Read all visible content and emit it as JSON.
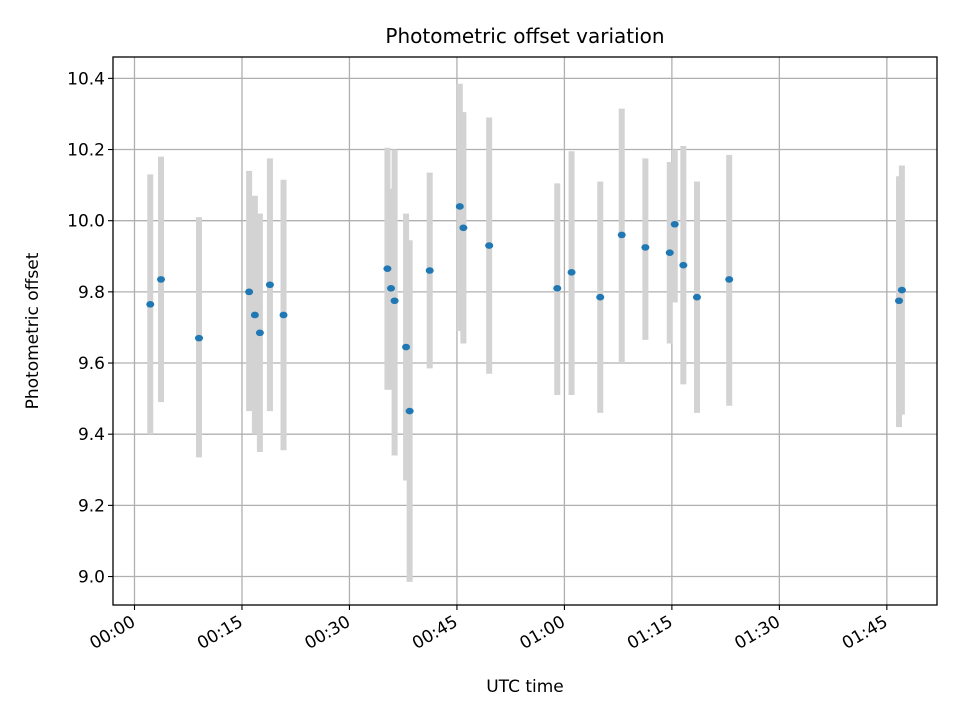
{
  "chart_data": {
    "type": "scatter",
    "title": "Photometric offset variation",
    "xlabel": "UTC time",
    "ylabel": "Photometric offset",
    "xlim": [
      -3.0,
      112.0
    ],
    "ylim": [
      8.92,
      10.46
    ],
    "x_unit": "minutes",
    "xticks": [
      {
        "value": 0,
        "label": "00:00"
      },
      {
        "value": 15,
        "label": "00:15"
      },
      {
        "value": 30,
        "label": "00:30"
      },
      {
        "value": 45,
        "label": "00:45"
      },
      {
        "value": 60,
        "label": "01:00"
      },
      {
        "value": 75,
        "label": "01:15"
      },
      {
        "value": 90,
        "label": "01:30"
      },
      {
        "value": 105,
        "label": "01:45"
      }
    ],
    "yticks": [
      {
        "value": 9.0,
        "label": "9.0"
      },
      {
        "value": 9.2,
        "label": "9.2"
      },
      {
        "value": 9.4,
        "label": "9.4"
      },
      {
        "value": 9.6,
        "label": "9.6"
      },
      {
        "value": 9.8,
        "label": "9.8"
      },
      {
        "value": 10.0,
        "label": "10.0"
      },
      {
        "value": 10.2,
        "label": "10.2"
      },
      {
        "value": 10.4,
        "label": "10.4"
      }
    ],
    "grid": true,
    "colors": {
      "marker": "#1f77b4",
      "errorbar": "#d3d3d3"
    },
    "points": [
      {
        "x": 2.2,
        "y": 9.765,
        "ymin": 9.4,
        "ymax": 10.13
      },
      {
        "x": 3.7,
        "y": 9.835,
        "ymin": 9.49,
        "ymax": 10.18
      },
      {
        "x": 9.0,
        "y": 9.67,
        "ymin": 9.335,
        "ymax": 10.01
      },
      {
        "x": 16.0,
        "y": 9.8,
        "ymin": 9.465,
        "ymax": 10.14
      },
      {
        "x": 16.8,
        "y": 9.735,
        "ymin": 9.4,
        "ymax": 10.07
      },
      {
        "x": 17.5,
        "y": 9.685,
        "ymin": 9.35,
        "ymax": 10.02
      },
      {
        "x": 18.9,
        "y": 9.82,
        "ymin": 9.465,
        "ymax": 10.175
      },
      {
        "x": 20.8,
        "y": 9.735,
        "ymin": 9.355,
        "ymax": 10.115
      },
      {
        "x": 35.3,
        "y": 9.865,
        "ymin": 9.525,
        "ymax": 10.205
      },
      {
        "x": 35.8,
        "y": 9.81,
        "ymin": 9.525,
        "ymax": 10.09
      },
      {
        "x": 36.3,
        "y": 9.775,
        "ymin": 9.34,
        "ymax": 10.2
      },
      {
        "x": 37.9,
        "y": 9.645,
        "ymin": 9.27,
        "ymax": 10.02
      },
      {
        "x": 38.4,
        "y": 9.465,
        "ymin": 8.985,
        "ymax": 9.945
      },
      {
        "x": 41.2,
        "y": 9.86,
        "ymin": 9.585,
        "ymax": 10.135
      },
      {
        "x": 45.4,
        "y": 10.04,
        "ymin": 9.69,
        "ymax": 10.385
      },
      {
        "x": 45.9,
        "y": 9.98,
        "ymin": 9.655,
        "ymax": 10.305
      },
      {
        "x": 49.5,
        "y": 9.93,
        "ymin": 9.57,
        "ymax": 10.29
      },
      {
        "x": 59.0,
        "y": 9.81,
        "ymin": 9.51,
        "ymax": 10.105
      },
      {
        "x": 61.0,
        "y": 9.855,
        "ymin": 9.51,
        "ymax": 10.195
      },
      {
        "x": 65.0,
        "y": 9.785,
        "ymin": 9.46,
        "ymax": 10.11
      },
      {
        "x": 78.5,
        "y": 9.785,
        "ymin": 9.46,
        "ymax": 10.11
      },
      {
        "x": 68.0,
        "y": 9.96,
        "ymin": 9.6,
        "ymax": 10.315
      },
      {
        "x": 71.3,
        "y": 9.925,
        "ymin": 9.665,
        "ymax": 10.175
      },
      {
        "x": 74.7,
        "y": 9.91,
        "ymin": 9.655,
        "ymax": 10.165
      },
      {
        "x": 75.4,
        "y": 9.99,
        "ymin": 9.77,
        "ymax": 10.2
      },
      {
        "x": 76.6,
        "y": 9.875,
        "ymin": 9.54,
        "ymax": 10.21
      },
      {
        "x": 83.0,
        "y": 9.835,
        "ymin": 9.48,
        "ymax": 10.185
      },
      {
        "x": 106.7,
        "y": 9.775,
        "ymin": 9.42,
        "ymax": 10.125
      },
      {
        "x": 107.1,
        "y": 9.805,
        "ymin": 9.455,
        "ymax": 10.155
      }
    ]
  }
}
